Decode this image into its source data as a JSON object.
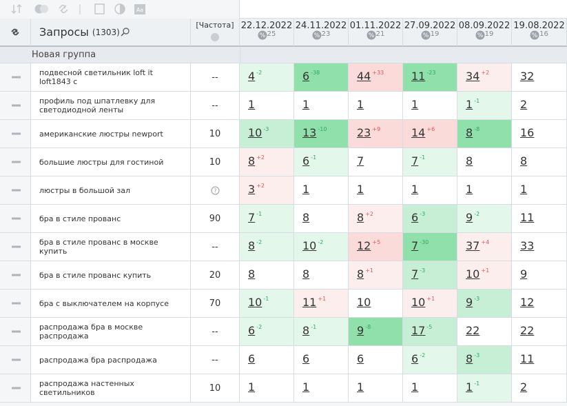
{
  "header": {
    "title": "Запросы",
    "count": "(1303)",
    "freq": "[Частота]",
    "dates": [
      {
        "date": "22.12.2022",
        "count": "25"
      },
      {
        "date": "24.11.2022",
        "count": "23"
      },
      {
        "date": "01.11.2022",
        "count": "21"
      },
      {
        "date": "27.09.2022",
        "count": "19"
      },
      {
        "date": "08.09.2022",
        "count": "19"
      },
      {
        "date": "19.08.2022",
        "count": "16"
      }
    ]
  },
  "group": "Новая группа",
  "rows": [
    {
      "query": "подвесной светильник loft it loft1843 c",
      "freq": "--",
      "cells": [
        {
          "value": 4,
          "delta": "-2",
          "color": "#e4f7eb"
        },
        {
          "value": 6,
          "delta": "-38",
          "color": "#8fe0aa"
        },
        {
          "value": 44,
          "delta": "+33",
          "color": "#fbdada"
        },
        {
          "value": 11,
          "delta": "-23",
          "color": "#8fe0aa"
        },
        {
          "value": 34,
          "delta": "+2",
          "color": "#fdeeee"
        },
        {
          "value": 32
        }
      ]
    },
    {
      "query": "профиль под шпатлевку для светодиодной ленты",
      "freq": "--",
      "cells": [
        {
          "value": 1
        },
        {
          "value": 1
        },
        {
          "value": 1
        },
        {
          "value": 1
        },
        {
          "value": 1,
          "delta": "-1",
          "color": "#e4f7eb"
        },
        {
          "value": 2
        }
      ]
    },
    {
      "query": "американские люстры newport",
      "freq": "10",
      "cells": [
        {
          "value": 10,
          "delta": "-3",
          "color": "#c6efd5"
        },
        {
          "value": 13,
          "delta": "-10",
          "color": "#8fe0aa"
        },
        {
          "value": 23,
          "delta": "+9",
          "color": "#fbdada"
        },
        {
          "value": 14,
          "delta": "+6",
          "color": "#fbdada"
        },
        {
          "value": 8,
          "delta": "-8",
          "color": "#8fe0aa"
        },
        {
          "value": 16
        }
      ]
    },
    {
      "query": "большие люстры для гостиной",
      "freq": "10",
      "cells": [
        {
          "value": 8,
          "delta": "+2",
          "color": "#fdeeee"
        },
        {
          "value": 6,
          "delta": "-1",
          "color": "#e4f7eb"
        },
        {
          "value": 7
        },
        {
          "value": 7,
          "delta": "-1",
          "color": "#e4f7eb"
        },
        {
          "value": 8
        },
        {
          "value": 8
        }
      ]
    },
    {
      "query": "люстры в большой зал",
      "freq": null,
      "cells": [
        {
          "value": 3,
          "delta": "+2",
          "color": "#fdeeee"
        },
        {
          "value": 1
        },
        {
          "value": 1
        },
        {
          "value": 1
        },
        {
          "value": 1
        },
        {
          "value": 1
        }
      ]
    },
    {
      "query": "бра в стиле прованс",
      "freq": "90",
      "cells": [
        {
          "value": 7,
          "delta": "-1",
          "color": "#e4f7eb"
        },
        {
          "value": 8
        },
        {
          "value": 8,
          "delta": "+2",
          "color": "#fdeeee"
        },
        {
          "value": 6,
          "delta": "-3",
          "color": "#c6efd5"
        },
        {
          "value": 9,
          "delta": "-2",
          "color": "#e4f7eb"
        },
        {
          "value": 11
        }
      ]
    },
    {
      "query": "бра в стиле прованс в москве купить",
      "freq": "--",
      "cells": [
        {
          "value": 8,
          "delta": "-2",
          "color": "#e4f7eb"
        },
        {
          "value": 10,
          "delta": "-2",
          "color": "#e4f7eb"
        },
        {
          "value": 12,
          "delta": "+5",
          "color": "#fbdada"
        },
        {
          "value": 7,
          "delta": "-30",
          "color": "#8fe0aa"
        },
        {
          "value": 37,
          "delta": "+4",
          "color": "#fdeeee"
        },
        {
          "value": 33
        }
      ]
    },
    {
      "query": "бра в стиле прованс купить",
      "freq": "20",
      "cells": [
        {
          "value": 8
        },
        {
          "value": 8
        },
        {
          "value": 8,
          "delta": "+1",
          "color": "#fdeeee"
        },
        {
          "value": 7,
          "delta": "-3",
          "color": "#c6efd5"
        },
        {
          "value": 10,
          "delta": "+1",
          "color": "#fdeeee"
        },
        {
          "value": 9
        }
      ]
    },
    {
      "query": "бра с выключателем на корпусе",
      "freq": "70",
      "cells": [
        {
          "value": 10,
          "delta": "-1",
          "color": "#e4f7eb"
        },
        {
          "value": 11,
          "delta": "+1",
          "color": "#fdeeee"
        },
        {
          "value": 10
        },
        {
          "value": 10,
          "delta": "+1",
          "color": "#fdeeee"
        },
        {
          "value": 9,
          "delta": "-3",
          "color": "#c6efd5"
        },
        {
          "value": 12
        }
      ]
    },
    {
      "query": "распродажа бра в москве распродажа",
      "freq": "--",
      "cells": [
        {
          "value": 6,
          "delta": "-2",
          "color": "#e4f7eb"
        },
        {
          "value": 8,
          "delta": "-1",
          "color": "#e4f7eb"
        },
        {
          "value": 9,
          "delta": "-8",
          "color": "#8fe0aa"
        },
        {
          "value": 17,
          "delta": "-5",
          "color": "#c6efd5"
        },
        {
          "value": 22
        },
        {
          "value": 22
        }
      ]
    },
    {
      "query": "распродажа бра распродажа",
      "freq": "--",
      "cells": [
        {
          "value": 6
        },
        {
          "value": 6
        },
        {
          "value": 6
        },
        {
          "value": 6,
          "delta": "-2",
          "color": "#e4f7eb"
        },
        {
          "value": 8,
          "delta": "-3",
          "color": "#c6efd5"
        },
        {
          "value": 11
        }
      ]
    },
    {
      "query": "распродажа настенных светильников",
      "freq": "10",
      "cells": [
        {
          "value": 1
        },
        {
          "value": 1
        },
        {
          "value": 1
        },
        {
          "value": 1
        },
        {
          "value": 1,
          "delta": "-1",
          "color": "#e4f7eb"
        },
        {
          "value": 2
        }
      ]
    }
  ]
}
